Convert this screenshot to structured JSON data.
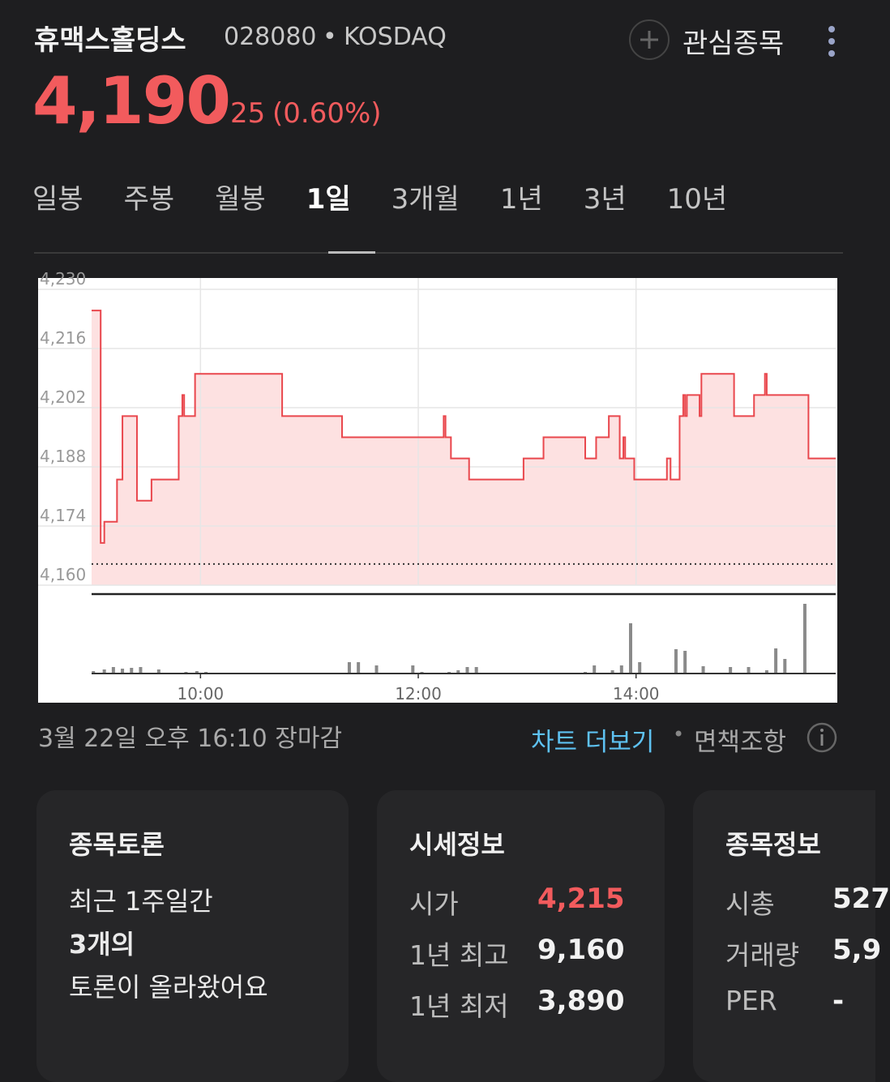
{
  "header": {
    "name": "휴맥스홀딩스",
    "code": "028080",
    "separator": "•",
    "market": "KOSDAQ",
    "watch_label": "관심종목"
  },
  "price": {
    "current": "4,190",
    "change": "25",
    "change_pct": "(0.60%)"
  },
  "tabs": [
    "일봉",
    "주봉",
    "월봉",
    "1일",
    "3개월",
    "1년",
    "3년",
    "10년"
  ],
  "active_tab": 3,
  "chart_data": {
    "type": "line",
    "step": "after",
    "color": "#e9474d",
    "fill_color": "#fde1e1",
    "x": [
      "09:00",
      "09:05",
      "09:07",
      "09:14",
      "09:17",
      "09:25",
      "09:33",
      "09:48",
      "09:50",
      "09:51",
      "09:57",
      "10:45",
      "11:18",
      "12:14",
      "12:15",
      "12:18",
      "12:28",
      "12:58",
      "13:09",
      "13:32",
      "13:38",
      "13:45",
      "13:51",
      "13:53",
      "13:54",
      "13:59",
      "14:17",
      "14:19",
      "14:24",
      "14:26",
      "14:27",
      "14:28",
      "14:35",
      "14:36",
      "14:54",
      "15:05",
      "15:11",
      "15:12",
      "15:35",
      "15:50"
    ],
    "values": [
      4225,
      4170,
      4175,
      4185,
      4200,
      4180,
      4185,
      4200,
      4205,
      4200,
      4210,
      4200,
      4195,
      4200,
      4195,
      4190,
      4185,
      4190,
      4195,
      4190,
      4195,
      4200,
      4190,
      4195,
      4190,
      4185,
      4190,
      4185,
      4200,
      4205,
      4200,
      4205,
      4200,
      4210,
      4200,
      4205,
      4210,
      4205,
      4190,
      4190
    ],
    "baseline": 4165,
    "xlim": [
      "09:00",
      "15:50"
    ],
    "xticks": [
      "10:00",
      "12:00",
      "14:00"
    ],
    "ylim": [
      4160,
      4230
    ],
    "yticks": [
      {
        "value": 4160,
        "label": "4,160"
      },
      {
        "value": 4174,
        "label": "4,174"
      },
      {
        "value": 4188,
        "label": "4,188"
      },
      {
        "value": 4202,
        "label": "4,202"
      },
      {
        "value": 4216,
        "label": "4,216"
      },
      {
        "value": 4230,
        "label": "4,230"
      }
    ],
    "grid": true,
    "volume": {
      "color": "#8a8a8a",
      "x": [
        "09:01",
        "09:07",
        "09:12",
        "09:17",
        "09:22",
        "09:27",
        "09:37",
        "09:52",
        "09:58",
        "10:03",
        "11:22",
        "11:27",
        "11:37",
        "11:57",
        "12:02",
        "12:17",
        "12:22",
        "12:27",
        "12:32",
        "12:57",
        "13:32",
        "13:37",
        "13:47",
        "13:52",
        "13:57",
        "14:02",
        "14:22",
        "14:27",
        "14:37",
        "14:52",
        "15:02",
        "15:12",
        "15:17",
        "15:22",
        "15:33"
      ],
      "values": [
        3,
        5,
        8,
        6,
        7,
        8,
        5,
        2,
        3,
        2,
        14,
        14,
        10,
        10,
        2,
        2,
        4,
        8,
        8,
        1,
        2,
        10,
        4,
        10,
        62,
        14,
        30,
        28,
        9,
        8,
        8,
        4,
        31,
        18,
        86
      ]
    }
  },
  "status": "3월 22일 오후 16:10 장마감",
  "links": {
    "more_chart": "차트 더보기",
    "separator": "•",
    "disclaimer": "면책조항"
  },
  "cards": [
    {
      "title": "종목토론",
      "lines": [
        "최근 1주일간",
        "3개의",
        "토론이 올라왔어요"
      ]
    },
    {
      "title": "시세정보",
      "rows": [
        [
          "시가",
          "4,215"
        ],
        [
          "1년 최고",
          "9,160"
        ],
        [
          "1년 최저",
          "3,890"
        ]
      ]
    },
    {
      "title": "종목정보",
      "rows": [
        [
          "시총",
          "527"
        ],
        [
          "거래량",
          "5,9"
        ],
        [
          "PER",
          "-"
        ]
      ]
    }
  ]
}
